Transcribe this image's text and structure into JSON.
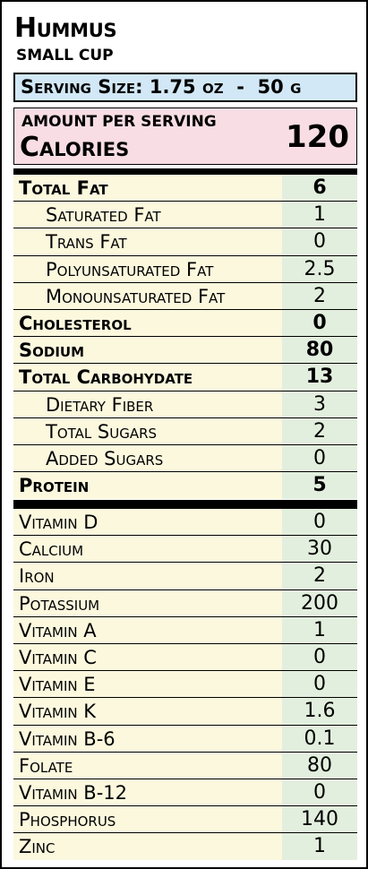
{
  "product": {
    "name": "Hummus",
    "portion": "SMALL CUP"
  },
  "serving": {
    "label": "Serving Size:",
    "value": "1.75 oz  -  50 g"
  },
  "calories": {
    "header": "AMOUNT PER SERVING",
    "label": "Calories",
    "value": "120"
  },
  "nutrients": [
    {
      "name": "Total Fat",
      "value": "6"
    },
    {
      "name": "Saturated Fat",
      "value": "1"
    },
    {
      "name": "Trans Fat",
      "value": "0"
    },
    {
      "name": "Polyunsaturated Fat",
      "value": "2.5"
    },
    {
      "name": "Monounsaturated Fat",
      "value": "2"
    },
    {
      "name": "Cholesterol",
      "value": "0"
    },
    {
      "name": "Sodium",
      "value": "80"
    },
    {
      "name": "Total Carbohydate",
      "value": "13"
    },
    {
      "name": "Dietary Fiber",
      "value": "3"
    },
    {
      "name": "Total Sugars",
      "value": "2"
    },
    {
      "name": "Added Sugars",
      "value": "0"
    },
    {
      "name": "Protein",
      "value": "5"
    }
  ],
  "vitamins": [
    {
      "name": "Vitamin D",
      "value": "0"
    },
    {
      "name": "Calcium",
      "value": "30"
    },
    {
      "name": "Iron",
      "value": "2"
    },
    {
      "name": "Potassium",
      "value": "200"
    },
    {
      "name": "Vitamin A",
      "value": "1"
    },
    {
      "name": "Vitamin C",
      "value": "0"
    },
    {
      "name": "Vitamin E",
      "value": "0"
    },
    {
      "name": "Vitamin K",
      "value": "1.6"
    },
    {
      "name": "Vitamin B-6",
      "value": "0.1"
    },
    {
      "name": "Folate",
      "value": "80"
    },
    {
      "name": "Vitamin B-12",
      "value": "0"
    },
    {
      "name": "Phosphorus",
      "value": "140"
    },
    {
      "name": "Zinc",
      "value": "1"
    }
  ],
  "colors": {
    "serving_bg": "#d2e8f6",
    "calories_bg": "#f8dde5",
    "name_col_bg": "#fbf8de",
    "value_col_bg": "#e3efde"
  }
}
